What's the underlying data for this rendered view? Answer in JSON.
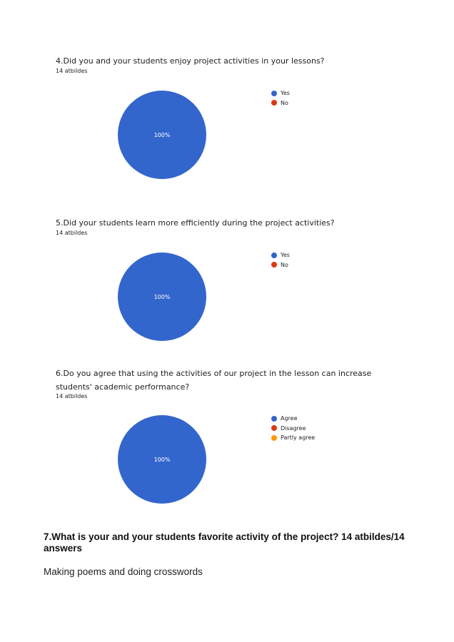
{
  "questions": [
    {
      "question": "4.Did you  and your students enjoy project activities  in your lessons?",
      "responses": "14 atbildes",
      "legend": [
        {
          "label": "Yes",
          "color": "#3366cc"
        },
        {
          "label": "No",
          "color": "#dc3912"
        }
      ]
    },
    {
      "question": "5.Did your students learn more efficiently during the project activities?",
      "responses": "14 atbildes",
      "legend": [
        {
          "label": "Yes",
          "color": "#3366cc"
        },
        {
          "label": "No",
          "color": "#dc3912"
        }
      ]
    },
    {
      "question": "6.Do you agree that using the activities of our project  in the lesson can increase students' academic performance?",
      "responses": "14 atbildes",
      "legend": [
        {
          "label": "Agree",
          "color": "#3366cc"
        },
        {
          "label": "Disagree",
          "color": "#dc3912"
        },
        {
          "label": "Partly agree",
          "color": "#ff9900"
        }
      ]
    }
  ],
  "chart_data": [
    {
      "type": "pie",
      "categories": [
        "Yes",
        "No"
      ],
      "values": [
        100,
        0
      ],
      "labels": [
        "100%",
        ""
      ],
      "colors": [
        "#3366cc",
        "#dc3912"
      ],
      "legend": "right"
    },
    {
      "type": "pie",
      "categories": [
        "Yes",
        "No"
      ],
      "values": [
        100,
        0
      ],
      "labels": [
        "100%",
        ""
      ],
      "colors": [
        "#3366cc",
        "#dc3912"
      ],
      "legend": "right"
    },
    {
      "type": "pie",
      "categories": [
        "Agree",
        "Disagree",
        "Partly agree"
      ],
      "values": [
        100,
        0,
        0
      ],
      "labels": [
        "100%",
        "",
        ""
      ],
      "colors": [
        "#3366cc",
        "#dc3912",
        "#ff9900"
      ],
      "legend": "right"
    }
  ],
  "q7": {
    "heading": "7.What is your and your students favorite activity of the project? 14 atbildes/14 answers",
    "answer": "Making poems and doing crosswords"
  }
}
